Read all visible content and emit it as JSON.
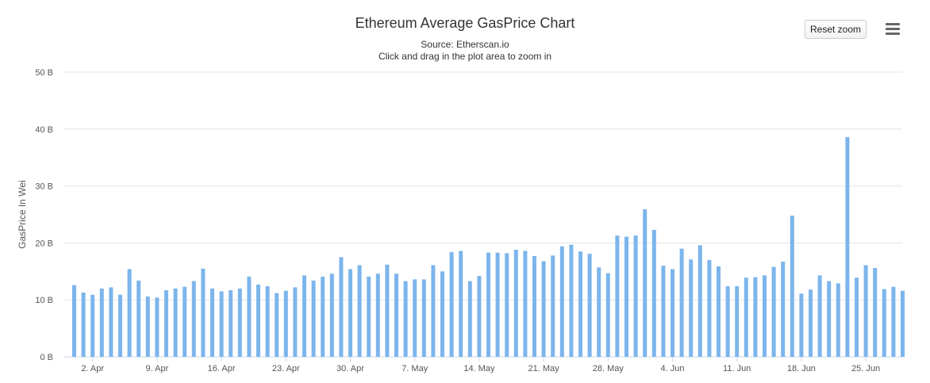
{
  "chart_data": {
    "type": "bar",
    "title": "Ethereum Average GasPrice Chart",
    "subtitle": "Source: Etherscan.io",
    "subtitle2": "Click and drag in the plot area to zoom in",
    "ylabel": "GasPrice In Wei",
    "xlabel": "",
    "ylim": [
      0,
      50
    ],
    "y_unit": "B",
    "y_ticks": [
      "0 B",
      "10 B",
      "20 B",
      "30 B",
      "40 B",
      "50 B"
    ],
    "grid": true,
    "legend": "none",
    "bar_color": "#7cb5ec",
    "x_start_date": "2018-03-31",
    "x_ticks": [
      {
        "label": "2. Apr",
        "date": "2018-04-02"
      },
      {
        "label": "9. Apr",
        "date": "2018-04-09"
      },
      {
        "label": "16. Apr",
        "date": "2018-04-16"
      },
      {
        "label": "23. Apr",
        "date": "2018-04-23"
      },
      {
        "label": "30. Apr",
        "date": "2018-04-30"
      },
      {
        "label": "7. May",
        "date": "2018-05-07"
      },
      {
        "label": "14. May",
        "date": "2018-05-14"
      },
      {
        "label": "21. May",
        "date": "2018-05-21"
      },
      {
        "label": "28. May",
        "date": "2018-05-28"
      },
      {
        "label": "4. Jun",
        "date": "2018-06-04"
      },
      {
        "label": "11. Jun",
        "date": "2018-06-11"
      },
      {
        "label": "18. Jun",
        "date": "2018-06-18"
      },
      {
        "label": "25. Jun",
        "date": "2018-06-25"
      }
    ],
    "values": [
      12.6,
      11.3,
      10.9,
      12.0,
      12.2,
      10.9,
      15.4,
      13.4,
      10.6,
      10.4,
      11.7,
      12.0,
      12.3,
      13.3,
      15.5,
      12.0,
      11.5,
      11.7,
      12.0,
      14.1,
      12.7,
      12.4,
      11.2,
      11.6,
      12.2,
      14.3,
      13.4,
      14.1,
      14.6,
      17.5,
      15.4,
      16.1,
      14.1,
      14.6,
      16.2,
      14.6,
      13.3,
      13.6,
      13.6,
      16.1,
      15.0,
      18.4,
      18.6,
      13.3,
      14.2,
      18.3,
      18.3,
      18.2,
      18.8,
      18.6,
      17.7,
      16.8,
      17.8,
      19.4,
      19.7,
      18.5,
      18.1,
      15.7,
      14.7,
      21.3,
      21.1,
      21.3,
      25.9,
      22.3,
      16.0,
      15.4,
      19.0,
      17.1,
      19.6,
      17.0,
      15.9,
      12.4,
      12.4,
      13.9,
      14.0,
      14.3,
      15.8,
      16.7,
      24.8,
      11.1,
      11.8,
      14.3,
      13.3,
      12.9,
      38.6,
      13.9,
      16.1,
      15.6,
      11.9,
      12.3,
      11.6
    ]
  },
  "toolbar": {
    "reset_zoom_label": "Reset zoom",
    "menu_icon": "hamburger-menu-icon"
  }
}
